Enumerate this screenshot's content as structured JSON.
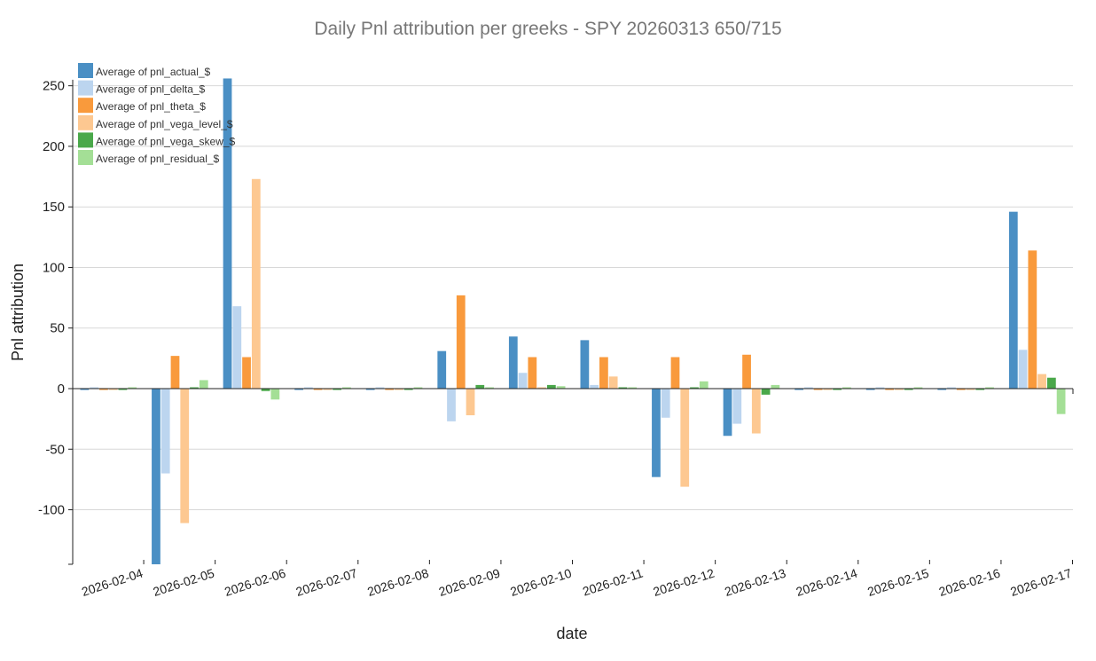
{
  "chart_data": {
    "type": "bar",
    "title": "Daily Pnl attribution per greeks - SPY 20260313 650/715",
    "xlabel": "date",
    "ylabel": "Pnl attribution",
    "categories": [
      "2026-02-04",
      "2026-02-05",
      "2026-02-06",
      "2026-02-07",
      "2026-02-08",
      "2026-02-09",
      "2026-02-10",
      "2026-02-11",
      "2026-02-12",
      "2026-02-13",
      "2026-02-14",
      "2026-02-15",
      "2026-02-16",
      "2026-02-17"
    ],
    "ylim": [
      -145,
      255
    ],
    "yticks": [
      -100,
      -50,
      0,
      50,
      100,
      150,
      200,
      250
    ],
    "grid": "horizontal",
    "legend_position": "top-left",
    "series": [
      {
        "name": "Average of pnl_actual_$",
        "color": "#4a8fc4",
        "values": [
          -1,
          -148,
          256,
          -1,
          -1,
          31,
          43,
          40,
          -73,
          -39,
          -1,
          -1,
          -1,
          146
        ]
      },
      {
        "name": "Average of pnl_delta_$",
        "color": "#bcd5ef",
        "values": [
          0,
          -70,
          68,
          0,
          0,
          -27,
          13,
          3,
          -24,
          -29,
          0,
          0,
          0,
          32
        ]
      },
      {
        "name": "Average of pnl_theta_$",
        "color": "#f99a3c",
        "values": [
          -1,
          27,
          26,
          -1,
          -1,
          77,
          26,
          26,
          26,
          28,
          -1,
          -1,
          -1,
          114
        ]
      },
      {
        "name": "Average of pnl_vega_level_$",
        "color": "#fdc891",
        "values": [
          -1,
          -111,
          173,
          -1,
          -1,
          -22,
          0,
          10,
          -81,
          -37,
          -1,
          -1,
          -1,
          12
        ]
      },
      {
        "name": "Average of pnl_vega_skew_$",
        "color": "#4aa84a",
        "values": [
          -1,
          0,
          -2,
          -1,
          -1,
          3,
          3,
          1,
          0,
          -5,
          -1,
          -1,
          -1,
          9
        ]
      },
      {
        "name": "Average of pnl_residual_$",
        "color": "#a4df96",
        "values": [
          0,
          7,
          -9,
          0,
          0,
          0,
          2,
          0,
          6,
          3,
          0,
          0,
          0,
          -21
        ]
      }
    ]
  }
}
